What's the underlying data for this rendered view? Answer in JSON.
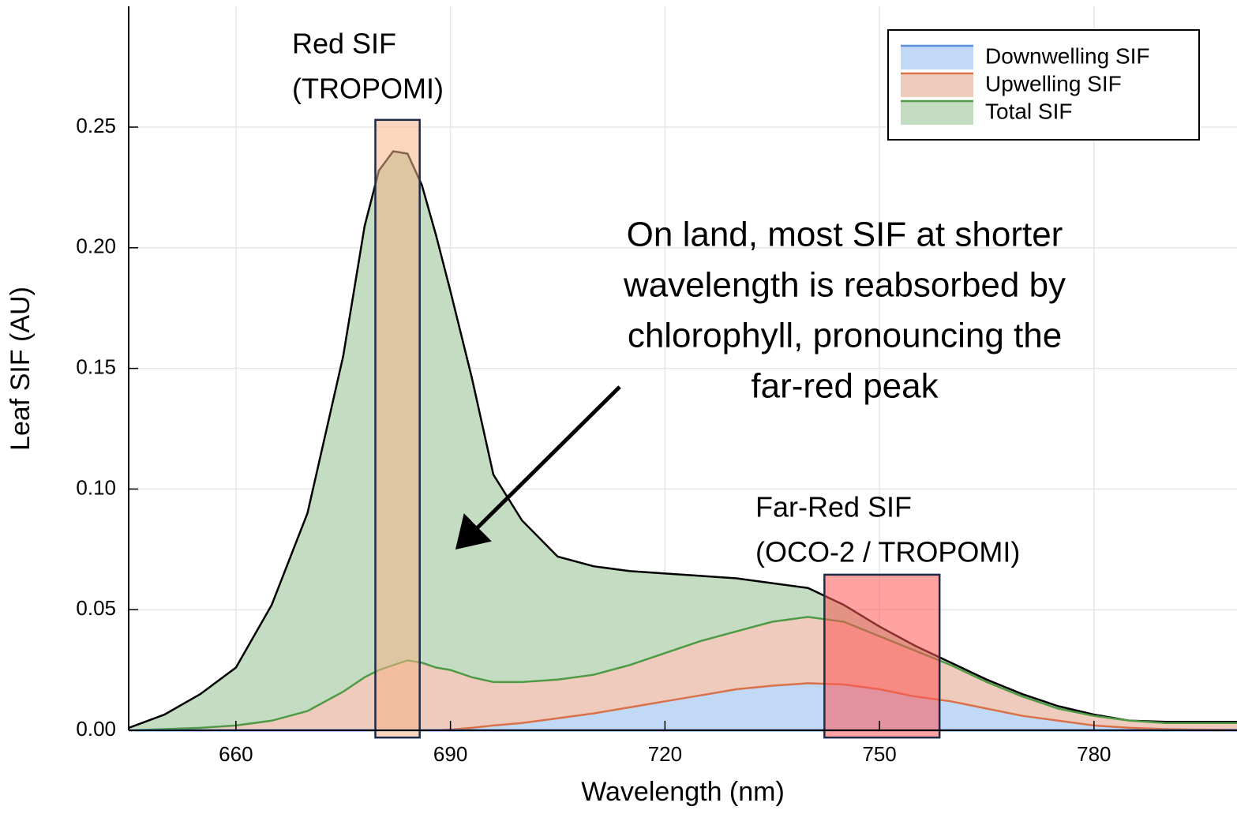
{
  "chart_data": {
    "type": "area",
    "x_label": "Wavelength (nm)",
    "y_label": "Leaf SIF (AU)",
    "xlim": [
      645,
      800
    ],
    "ylim": [
      0,
      0.3
    ],
    "xticks": [
      660,
      690,
      720,
      750,
      780
    ],
    "yticks": [
      {
        "value": 0,
        "label": "0.00"
      },
      {
        "value": 0.05,
        "label": "0.05"
      },
      {
        "value": 0.1,
        "label": "0.10"
      },
      {
        "value": 0.15,
        "label": "0.15"
      },
      {
        "value": 0.2,
        "label": "0.20"
      },
      {
        "value": 0.25,
        "label": "0.25"
      }
    ],
    "grid": true,
    "legend": "top-right",
    "x": [
      645,
      650,
      655,
      660,
      665,
      670,
      675,
      678,
      680,
      682,
      684,
      686,
      688,
      690,
      693,
      696,
      700,
      705,
      710,
      715,
      720,
      725,
      730,
      735,
      740,
      745,
      750,
      755,
      760,
      765,
      770,
      775,
      780,
      785,
      790,
      795,
      800
    ],
    "series": [
      {
        "name": "Downwelling SIF",
        "color": "#c2d9f6",
        "line_color": "#5b8fdc",
        "edge_color": "#d9714a",
        "values": [
          0,
          0,
          0,
          0,
          0,
          0,
          0,
          0,
          0,
          0,
          0,
          0,
          0,
          0.0003,
          0.001,
          0.002,
          0.003,
          0.005,
          0.007,
          0.0095,
          0.012,
          0.0145,
          0.017,
          0.0185,
          0.0195,
          0.019,
          0.017,
          0.014,
          0.012,
          0.009,
          0.006,
          0.004,
          0.002,
          0.001,
          0.0005,
          0.0003,
          0.0002
        ]
      },
      {
        "name": "Upwelling SIF",
        "color": "#efcbbd",
        "line_color": "#d9714a",
        "edge_color": "#4f9a45",
        "values": [
          0,
          0.0005,
          0.001,
          0.002,
          0.004,
          0.008,
          0.016,
          0.022,
          0.025,
          0.027,
          0.029,
          0.028,
          0.026,
          0.025,
          0.022,
          0.02,
          0.02,
          0.021,
          0.023,
          0.027,
          0.032,
          0.037,
          0.041,
          0.045,
          0.047,
          0.045,
          0.039,
          0.033,
          0.027,
          0.02,
          0.014,
          0.009,
          0.006,
          0.004,
          0.003,
          0.003,
          0.003
        ]
      },
      {
        "name": "Total SIF",
        "color": "#c4dcc1",
        "line_color": "#4f9a45",
        "edge_color": "#000000",
        "values": [
          0.001,
          0.0065,
          0.015,
          0.026,
          0.052,
          0.09,
          0.155,
          0.209,
          0.232,
          0.24,
          0.239,
          0.226,
          0.205,
          0.182,
          0.146,
          0.106,
          0.087,
          0.072,
          0.068,
          0.066,
          0.065,
          0.064,
          0.063,
          0.061,
          0.059,
          0.052,
          0.043,
          0.035,
          0.028,
          0.021,
          0.015,
          0.01,
          0.0065,
          0.004,
          0.0035,
          0.0035,
          0.0035
        ]
      }
    ],
    "highlights": [
      {
        "label_lines": [
          "Red SIF",
          "(TROPOMI)"
        ],
        "xrange": [
          679.5,
          685.7
        ],
        "yrange": [
          -0.003,
          0.253
        ],
        "color": "#f6b488"
      },
      {
        "label_lines": [
          "Far-Red SIF",
          "(OCO-2 / TROPOMI)"
        ],
        "xrange": [
          742.3,
          758.4
        ],
        "yrange": [
          -0.003,
          0.0645
        ],
        "color": "#ff5555"
      }
    ],
    "annotation": [
      "On land, most SIF at shorter",
      "wavelength is reabsorbed by",
      "chlorophyll, pronouncing the",
      "far-red peak"
    ]
  }
}
